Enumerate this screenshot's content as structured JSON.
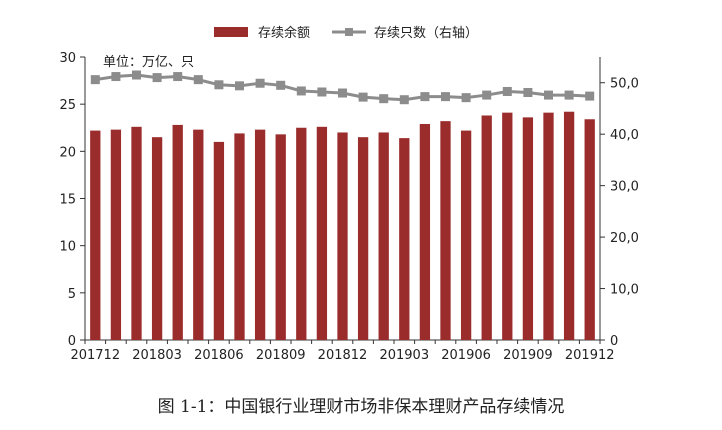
{
  "caption": "图 1-1：中国银行业理财市场非保本理财产品存续情况",
  "chart_data": {
    "type": "bar",
    "unit_label": "单位：万亿、只",
    "series": [
      {
        "name": "存续余额",
        "type": "bar",
        "axis": "left",
        "color": "#9b2c2c",
        "values": [
          22.2,
          22.3,
          22.6,
          21.5,
          22.8,
          22.3,
          21.0,
          21.9,
          22.3,
          21.8,
          22.5,
          22.6,
          22.0,
          21.5,
          22.0,
          21.4,
          22.9,
          23.2,
          22.2,
          23.8,
          24.1,
          23.6,
          24.1,
          24.2,
          23.4
        ]
      },
      {
        "name": "存续只数（右轴）",
        "type": "line",
        "axis": "right",
        "color": "#8c8c8c",
        "values": [
          50.6,
          51.2,
          51.5,
          51.0,
          51.2,
          50.6,
          49.6,
          49.4,
          49.9,
          49.5,
          48.4,
          48.2,
          48.0,
          47.2,
          46.9,
          46.7,
          47.3,
          47.3,
          47.1,
          47.6,
          48.3,
          48.1,
          47.6,
          47.6,
          47.4
        ]
      }
    ],
    "x_tick_labels": [
      {
        "index": 0,
        "label": "201712"
      },
      {
        "index": 3,
        "label": "201803"
      },
      {
        "index": 6,
        "label": "201806"
      },
      {
        "index": 9,
        "label": "201809"
      },
      {
        "index": 12,
        "label": "201812"
      },
      {
        "index": 15,
        "label": "201903"
      },
      {
        "index": 18,
        "label": "201906"
      },
      {
        "index": 21,
        "label": "201909"
      },
      {
        "index": 24,
        "label": "201912"
      }
    ],
    "y_left": {
      "min": 0,
      "max": 30,
      "ticks": [
        "0",
        "5",
        "10",
        "15",
        "20",
        "25",
        "30"
      ]
    },
    "y_right": {
      "min": 0,
      "max": 55,
      "ticks": [
        "0",
        "10,0",
        "20,0",
        "30,0",
        "40,0",
        "50,0"
      ]
    },
    "legend_position": "top-center",
    "grid": false
  }
}
